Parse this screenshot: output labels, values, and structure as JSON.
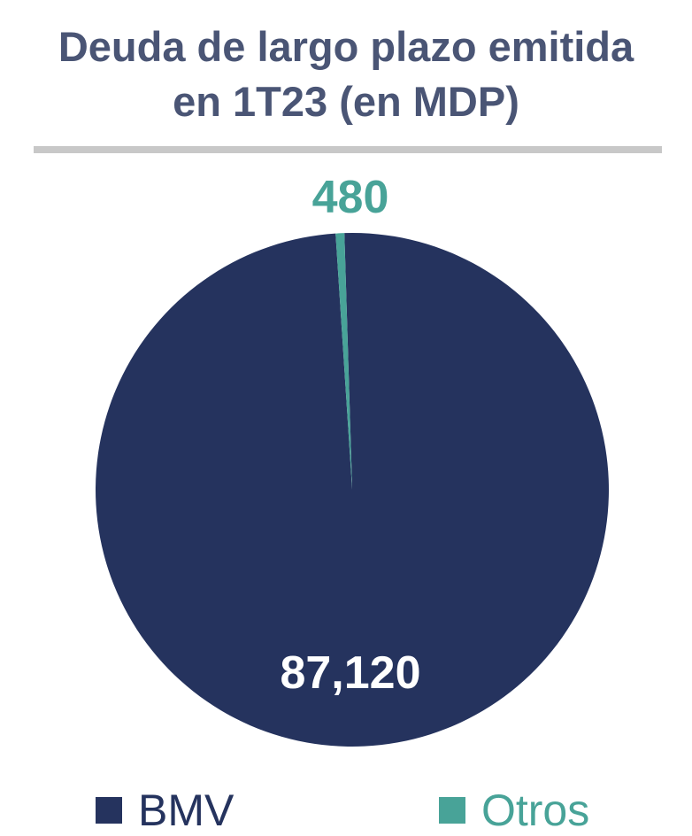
{
  "title_lines": [
    "Deuda de largo plazo emitida",
    "en 1T23 (en MDP)"
  ],
  "chart_data": {
    "type": "pie",
    "title": "Deuda de largo plazo emitida en 1T23 (en MDP)",
    "slices": [
      {
        "name": "BMV",
        "value": 87120,
        "label": "87,120",
        "color": "#25335e",
        "label_color": "#ffffff"
      },
      {
        "name": "Otros",
        "value": 480,
        "label": "480",
        "color": "#48a398",
        "label_color": "#48a398"
      }
    ],
    "legend_position": "bottom"
  }
}
